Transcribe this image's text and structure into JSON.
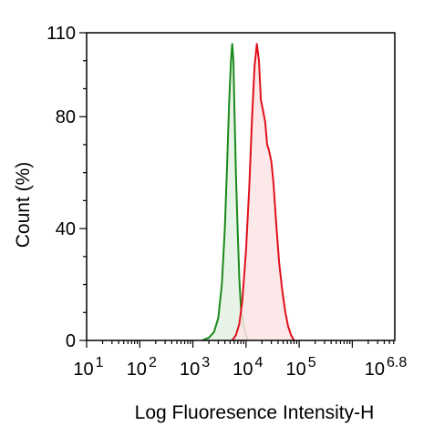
{
  "chart_data": {
    "type": "area",
    "title": "",
    "xlabel": "Log Fluoresence Intensity-H",
    "ylabel": "Count  (%)",
    "x_scale": "log10",
    "xlim": [
      10,
      6309573
    ],
    "ylim": [
      0,
      110
    ],
    "grid": false,
    "legend": "none",
    "x_ticks": [
      {
        "base": "10",
        "exp": "1",
        "value": 10
      },
      {
        "base": "10",
        "exp": "2",
        "value": 100
      },
      {
        "base": "10",
        "exp": "3",
        "value": 1000
      },
      {
        "base": "10",
        "exp": "4",
        "value": 10000
      },
      {
        "base": "10",
        "exp": "5",
        "value": 100000
      },
      {
        "base": "10",
        "exp": "6.8",
        "value": 6309573
      }
    ],
    "y_ticks": [
      {
        "label": "0",
        "value": 0
      },
      {
        "label": "40",
        "value": 40
      },
      {
        "label": "80",
        "value": 80
      },
      {
        "label": "110",
        "value": 110
      }
    ],
    "series": [
      {
        "color": "#1a8a1a",
        "fill": "#e4f1e4",
        "points": [
          [
            1500,
            0
          ],
          [
            2000,
            1
          ],
          [
            2500,
            3
          ],
          [
            3000,
            8
          ],
          [
            3500,
            20
          ],
          [
            4000,
            40
          ],
          [
            4400,
            62
          ],
          [
            4800,
            85
          ],
          [
            5200,
            100
          ],
          [
            5500,
            106
          ],
          [
            5800,
            100
          ],
          [
            6100,
            80
          ],
          [
            6500,
            58
          ],
          [
            7000,
            38
          ],
          [
            7500,
            22
          ],
          [
            8000,
            12
          ],
          [
            9000,
            5
          ],
          [
            10000,
            2
          ],
          [
            11000,
            0
          ]
        ]
      },
      {
        "color": "#e0101a",
        "fill": "#fbe4e4",
        "points": [
          [
            5500,
            0
          ],
          [
            6500,
            2
          ],
          [
            7500,
            6
          ],
          [
            8500,
            14
          ],
          [
            10000,
            32
          ],
          [
            11500,
            55
          ],
          [
            13000,
            80
          ],
          [
            14500,
            98
          ],
          [
            16000,
            106
          ],
          [
            17500,
            100
          ],
          [
            19000,
            86
          ],
          [
            21000,
            82
          ],
          [
            23000,
            78
          ],
          [
            25000,
            70
          ],
          [
            27000,
            68
          ],
          [
            30000,
            64
          ],
          [
            33000,
            56
          ],
          [
            37000,
            42
          ],
          [
            42000,
            28
          ],
          [
            48000,
            18
          ],
          [
            55000,
            10
          ],
          [
            62000,
            5
          ],
          [
            70000,
            2
          ],
          [
            80000,
            0
          ]
        ]
      }
    ]
  }
}
